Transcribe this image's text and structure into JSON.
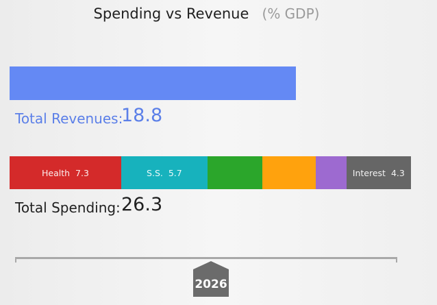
{
  "header": {
    "title": "Spending vs Revenue",
    "subtitle": "(% GDP)"
  },
  "revenue": {
    "label": "Total Revenues:",
    "value": "18.8",
    "share_of_spending": 0.715,
    "color": "#6489f4"
  },
  "spending": {
    "label": "Total Spending:",
    "value": "26.3",
    "segments": [
      {
        "name": "Health",
        "value_text": "7.3",
        "share": 0.278,
        "color": "#d42a2a"
      },
      {
        "name": "S.S.",
        "value_text": "5.7",
        "share": 0.215,
        "color": "#17b2bd"
      },
      {
        "name": "",
        "value_text": "",
        "share": 0.137,
        "color": "#2ba62b"
      },
      {
        "name": "",
        "value_text": "",
        "share": 0.132,
        "color": "#ffa20d"
      },
      {
        "name": "",
        "value_text": "",
        "share": 0.077,
        "color": "#9d6ad0"
      },
      {
        "name": "Interest",
        "value_text": "4.3",
        "share": 0.161,
        "color": "#666666"
      }
    ]
  },
  "timeline": {
    "year": "2026",
    "handle_color": "#6b6b6b"
  }
}
